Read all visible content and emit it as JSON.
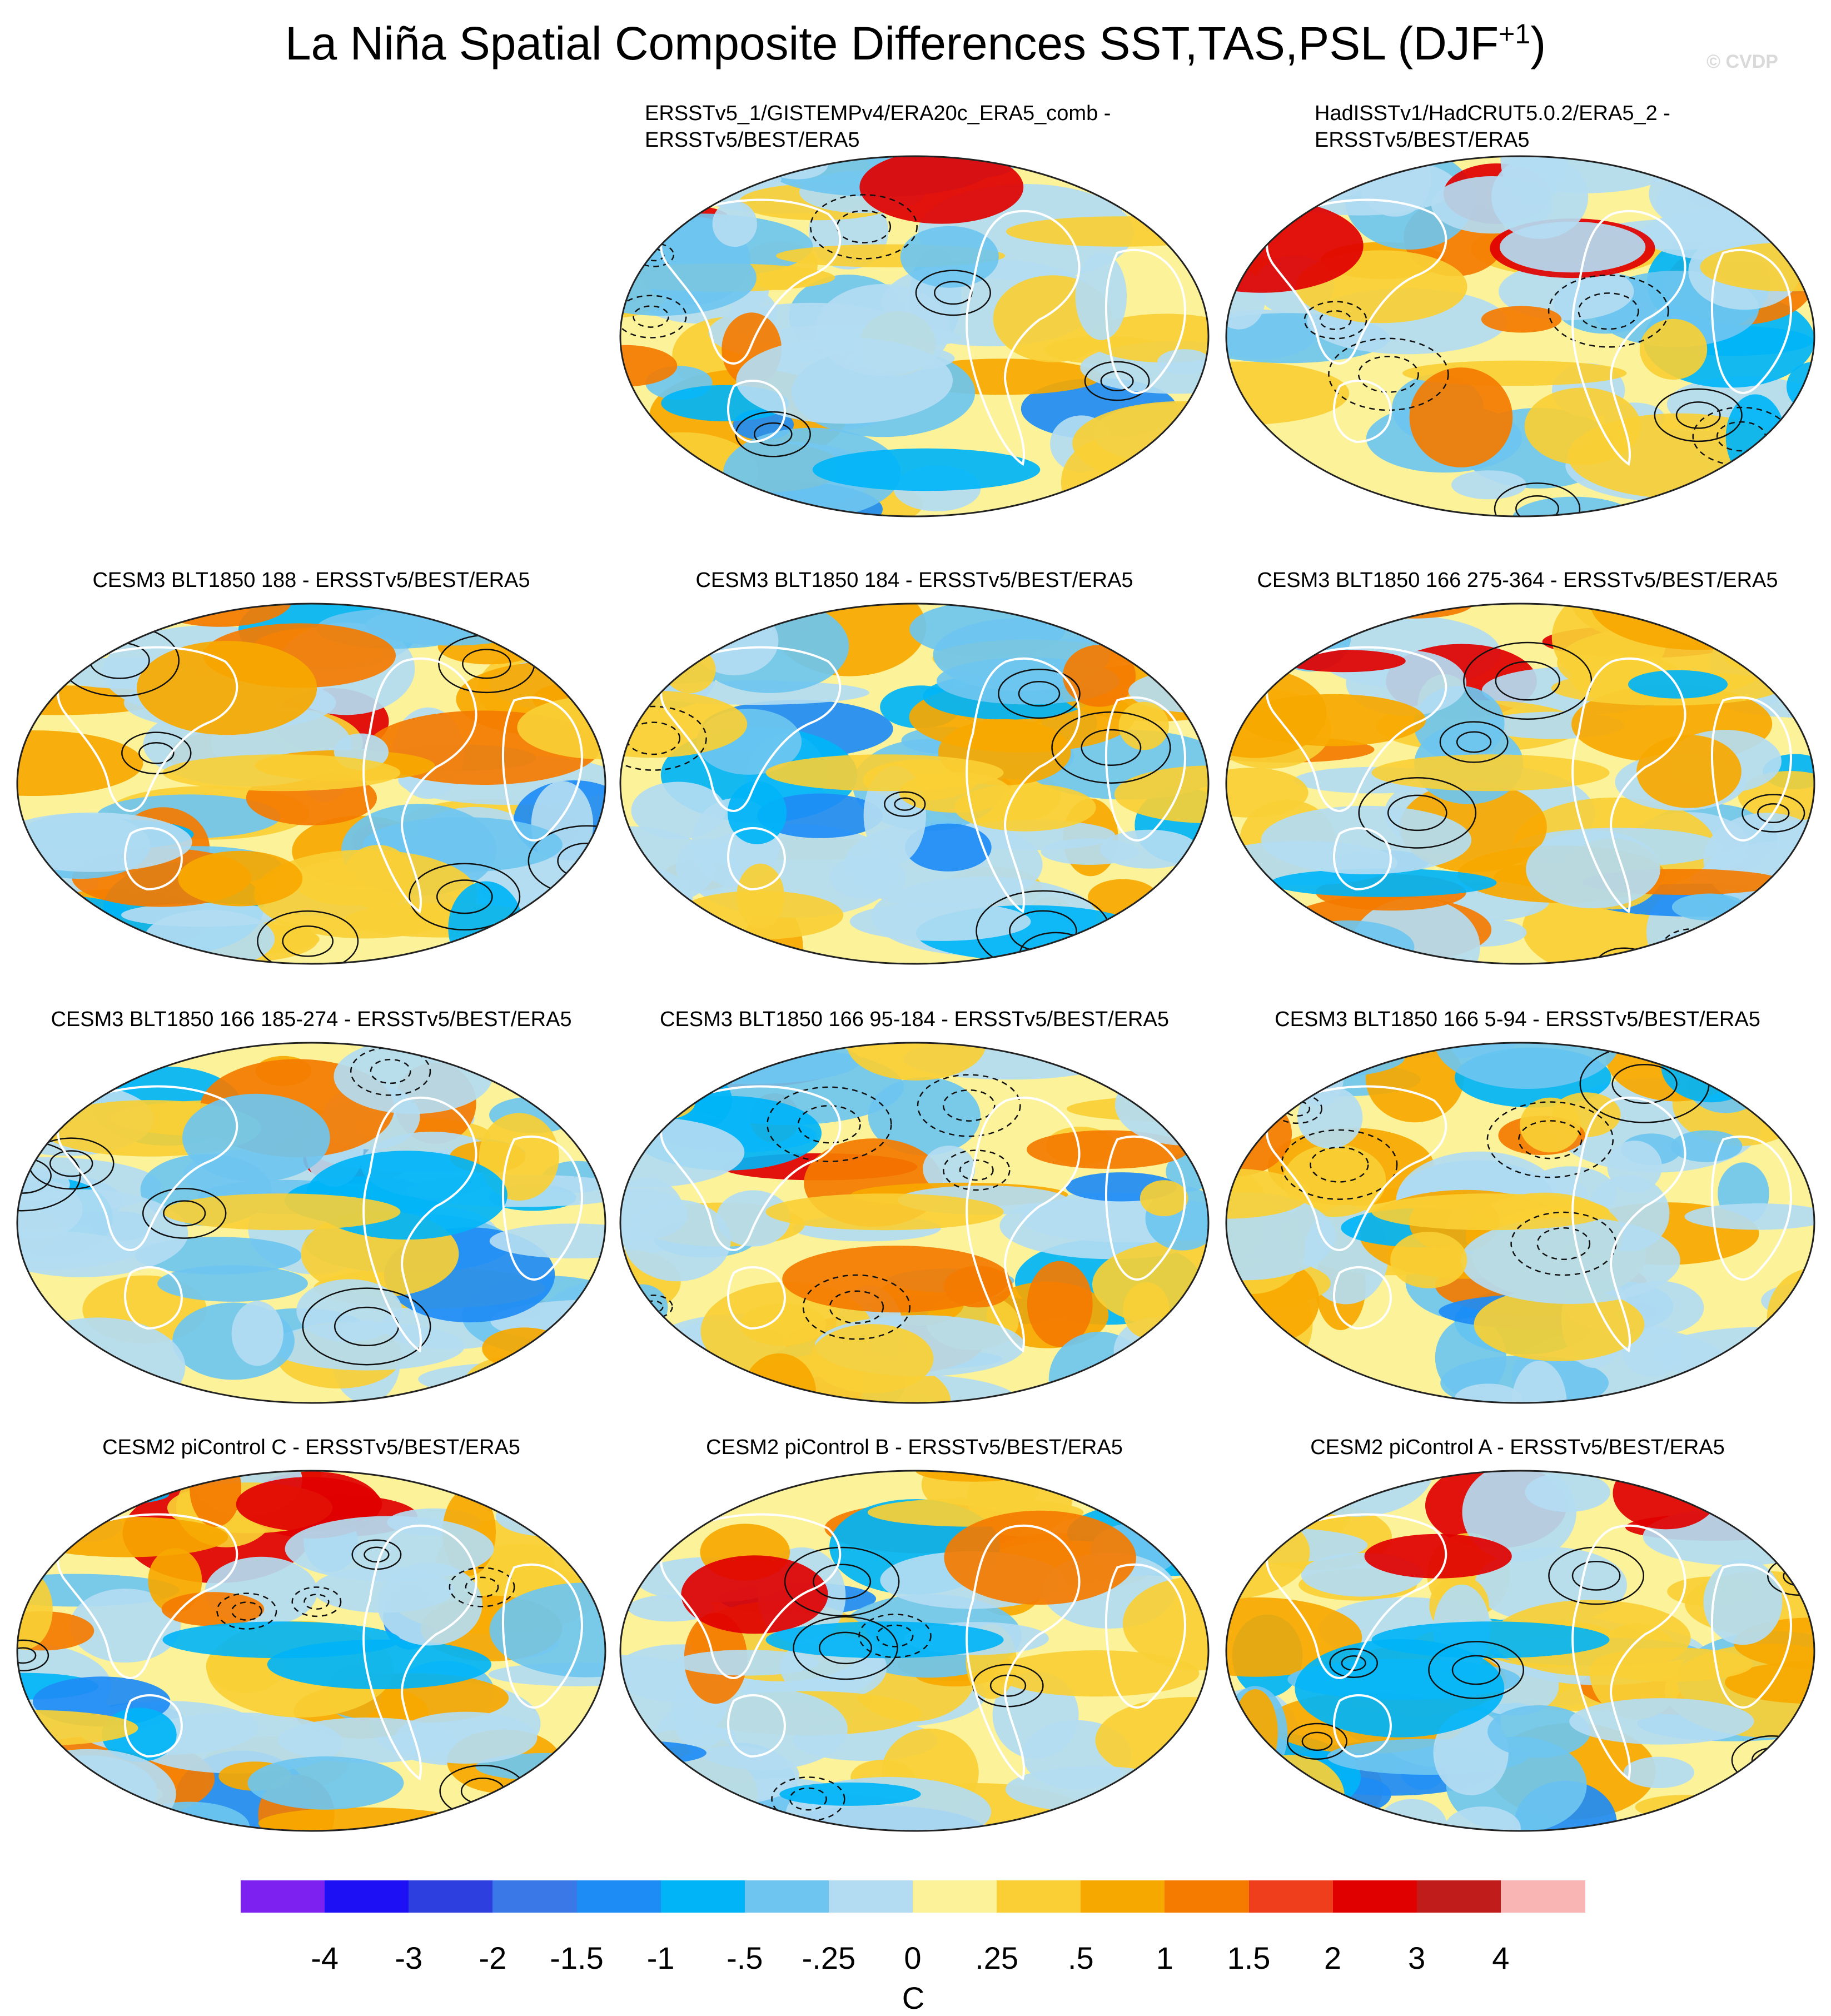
{
  "title": "La Niña Spatial Composite Differences SST,TAS,PSL (DJF",
  "title_superscript": "+1",
  "title_end": ")",
  "watermark": "© CVDP",
  "panels": [
    {
      "title_lines": [
        "ERSSTv5_1/GISTEMPv4/ERA20c_ERA5_comb -",
        "ERSSTv5/BEST/ERA5"
      ]
    },
    {
      "title_lines": [
        "HadISSTv1/HadCRUT5.0.2/ERA5_2 -",
        "ERSSTv5/BEST/ERA5"
      ]
    },
    {
      "title_lines": [
        "CESM3 BLT1850 188 - ERSSTv5/BEST/ERA5"
      ]
    },
    {
      "title_lines": [
        "CESM3 BLT1850 184 - ERSSTv5/BEST/ERA5"
      ]
    },
    {
      "title_lines": [
        "CESM3 BLT1850 166 275-364 - ERSSTv5/BEST/ERA5"
      ]
    },
    {
      "title_lines": [
        "CESM3 BLT1850 166 185-274 - ERSSTv5/BEST/ERA5"
      ]
    },
    {
      "title_lines": [
        "CESM3 BLT1850 166 95-184 - ERSSTv5/BEST/ERA5"
      ]
    },
    {
      "title_lines": [
        "CESM3 BLT1850 166 5-94 - ERSSTv5/BEST/ERA5"
      ]
    },
    {
      "title_lines": [
        "CESM2 piControl C - ERSSTv5/BEST/ERA5"
      ]
    },
    {
      "title_lines": [
        "CESM2 piControl B - ERSSTv5/BEST/ERA5"
      ]
    },
    {
      "title_lines": [
        "CESM2 piControl A - ERSSTv5/BEST/ERA5"
      ]
    }
  ],
  "colorbar": {
    "unit": "C",
    "labels": [
      "-4",
      "-3",
      "-2",
      "-1.5",
      "-1",
      "-.5",
      "-.25",
      "0",
      ".25",
      ".5",
      "1",
      "1.5",
      "2",
      "3",
      "4"
    ],
    "colors": [
      "#7c21f0",
      "#1e10f5",
      "#2e3fe0",
      "#3a78e8",
      "#1e8cf5",
      "#00b4f7",
      "#6ec6f0",
      "#b3dcf2",
      "#fbf29a",
      "#f9cf35",
      "#f7a800",
      "#f47b00",
      "#ef3e1b",
      "#e00000",
      "#c11c1c",
      "#f9b4b4"
    ]
  }
}
